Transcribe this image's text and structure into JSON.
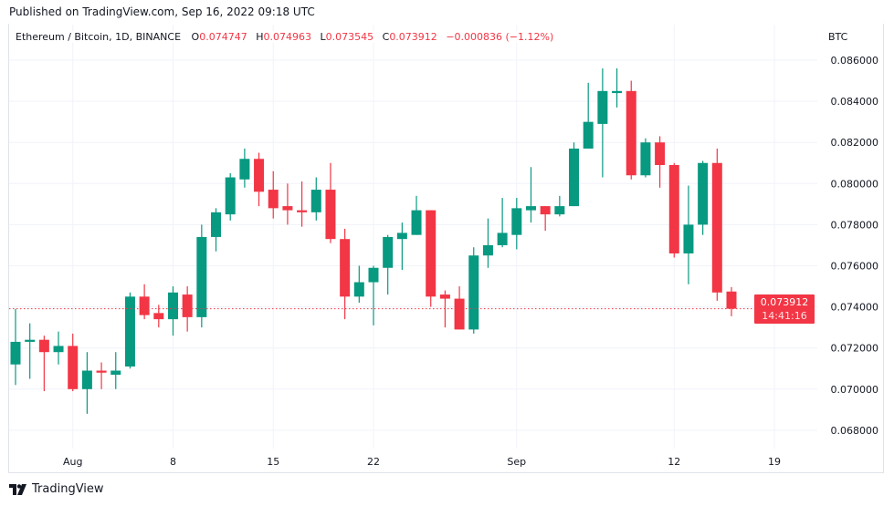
{
  "header": {
    "published": "Published on TradingView.com, Sep 16, 2022 09:18 UTC"
  },
  "legend": {
    "symbol": "Ethereum / Bitcoin, 1D, BINANCE",
    "open_label": "O",
    "open": "0.074747",
    "high_label": "H",
    "high": "0.074963",
    "low_label": "L",
    "low": "0.073545",
    "close_label": "C",
    "close": "0.073912",
    "change": "−0.000836 (−1.12%)"
  },
  "currency": "BTC",
  "last_price": {
    "value": "0.073912",
    "countdown": "14:41:16"
  },
  "footer": {
    "brand": "TradingView"
  },
  "colors": {
    "up": "#089981",
    "down": "#f23645",
    "grid": "#f0f3fa"
  },
  "chart_data": {
    "type": "candlestick",
    "title": "Ethereum / Bitcoin, 1D, BINANCE",
    "ylabel": "BTC",
    "ylim": [
      0.0668,
      0.087
    ],
    "yticks": [
      "0.086000",
      "0.084000",
      "0.082000",
      "0.080000",
      "0.078000",
      "0.076000",
      "0.074000",
      "0.072000",
      "0.070000",
      "0.068000"
    ],
    "ytick_values": [
      0.086,
      0.084,
      0.082,
      0.08,
      0.078,
      0.076,
      0.074,
      0.072,
      0.07,
      0.068
    ],
    "xticks": [
      {
        "label": "Aug",
        "index": 4
      },
      {
        "label": "8",
        "index": 11
      },
      {
        "label": "15",
        "index": 18
      },
      {
        "label": "22",
        "index": 25
      },
      {
        "label": "Sep",
        "index": 35
      },
      {
        "label": "12",
        "index": 46
      },
      {
        "label": "19",
        "index": 53
      }
    ],
    "first_date": "2022-07-28",
    "last_date": "2022-09-16",
    "grid": true,
    "ohlc": [
      [
        0.0712,
        0.0739,
        0.0702,
        0.0723
      ],
      [
        0.0723,
        0.0732,
        0.0705,
        0.0724
      ],
      [
        0.0724,
        0.0726,
        0.0699,
        0.0718
      ],
      [
        0.0718,
        0.0728,
        0.0712,
        0.0721
      ],
      [
        0.0721,
        0.0727,
        0.0699,
        0.07
      ],
      [
        0.07,
        0.0718,
        0.0688,
        0.0709
      ],
      [
        0.0709,
        0.0713,
        0.07,
        0.0708
      ],
      [
        0.0707,
        0.0718,
        0.07,
        0.0709
      ],
      [
        0.0711,
        0.0747,
        0.071,
        0.0745
      ],
      [
        0.0745,
        0.0751,
        0.0734,
        0.0736
      ],
      [
        0.0737,
        0.0741,
        0.073,
        0.0734
      ],
      [
        0.0734,
        0.075,
        0.0726,
        0.0747
      ],
      [
        0.0746,
        0.075,
        0.0728,
        0.0735
      ],
      [
        0.0735,
        0.078,
        0.073,
        0.0774
      ],
      [
        0.0774,
        0.0788,
        0.0767,
        0.0786
      ],
      [
        0.0785,
        0.0805,
        0.0782,
        0.0803
      ],
      [
        0.0802,
        0.0817,
        0.0798,
        0.0812
      ],
      [
        0.0812,
        0.0815,
        0.0789,
        0.0796
      ],
      [
        0.0797,
        0.0806,
        0.0783,
        0.0788
      ],
      [
        0.0789,
        0.08,
        0.078,
        0.0787
      ],
      [
        0.0787,
        0.0801,
        0.0779,
        0.0786
      ],
      [
        0.0786,
        0.0803,
        0.0782,
        0.0797
      ],
      [
        0.0797,
        0.081,
        0.0771,
        0.0773
      ],
      [
        0.0773,
        0.0778,
        0.0734,
        0.0745
      ],
      [
        0.0745,
        0.076,
        0.0742,
        0.0752
      ],
      [
        0.0752,
        0.076,
        0.0731,
        0.0759
      ],
      [
        0.0759,
        0.0775,
        0.0746,
        0.0774
      ],
      [
        0.0773,
        0.0781,
        0.0758,
        0.0776
      ],
      [
        0.0775,
        0.0794,
        0.0775,
        0.0787
      ],
      [
        0.0787,
        0.0787,
        0.074,
        0.0745
      ],
      [
        0.0746,
        0.0748,
        0.073,
        0.0744
      ],
      [
        0.0744,
        0.075,
        0.0729,
        0.0729
      ],
      [
        0.0729,
        0.0769,
        0.0727,
        0.0765
      ],
      [
        0.0765,
        0.0783,
        0.0759,
        0.077
      ],
      [
        0.077,
        0.0793,
        0.0769,
        0.0776
      ],
      [
        0.0775,
        0.0793,
        0.0768,
        0.0788
      ],
      [
        0.0787,
        0.0808,
        0.0781,
        0.0789
      ],
      [
        0.0789,
        0.0789,
        0.0777,
        0.0785
      ],
      [
        0.0785,
        0.0794,
        0.0784,
        0.0789
      ],
      [
        0.0789,
        0.082,
        0.0789,
        0.0817
      ],
      [
        0.0817,
        0.0849,
        0.0817,
        0.083
      ],
      [
        0.0829,
        0.0856,
        0.0803,
        0.0845
      ],
      [
        0.0844,
        0.0856,
        0.0837,
        0.0845
      ],
      [
        0.0845,
        0.085,
        0.0802,
        0.0804
      ],
      [
        0.0804,
        0.0822,
        0.0803,
        0.082
      ],
      [
        0.082,
        0.0823,
        0.0798,
        0.0809
      ],
      [
        0.0809,
        0.081,
        0.0764,
        0.0766
      ],
      [
        0.0766,
        0.0799,
        0.0751,
        0.078
      ],
      [
        0.078,
        0.0811,
        0.0775,
        0.081
      ],
      [
        0.081,
        0.0817,
        0.0743,
        0.0747
      ],
      [
        0.074747,
        0.074963,
        0.073545,
        0.073912
      ]
    ],
    "last_price_line": 0.073912
  }
}
